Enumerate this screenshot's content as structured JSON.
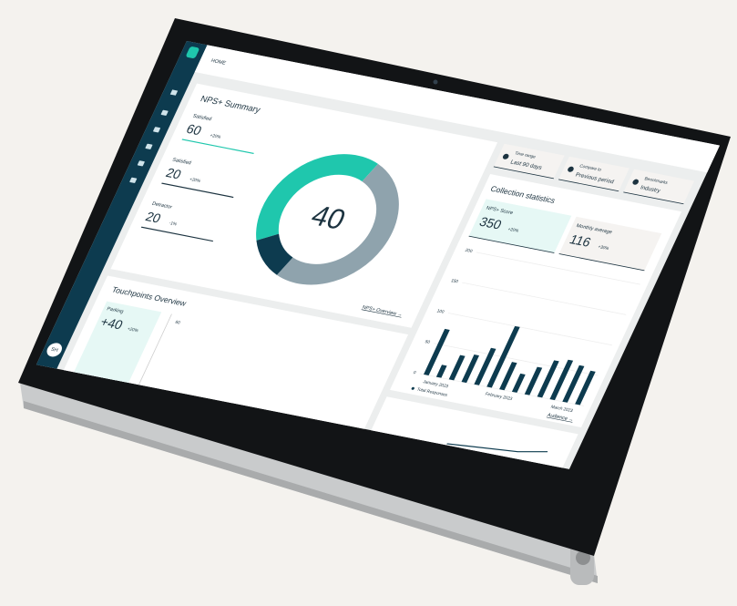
{
  "header": {
    "title": "HOME",
    "avatar": "SH"
  },
  "filters": [
    {
      "label": "Time range",
      "value": "Last 90 days"
    },
    {
      "label": "Compare to",
      "value": "Previous period"
    },
    {
      "label": "Benchmarks",
      "value": "Industry"
    }
  ],
  "nps": {
    "title": "NPS+ Summary",
    "score": "40",
    "stats": [
      {
        "label": "Satisfied",
        "value": "60",
        "change": "+20%"
      },
      {
        "label": "Satisfied",
        "value": "20",
        "change": "+20%"
      },
      {
        "label": "Detractor",
        "value": "20",
        "change": "-1%"
      }
    ],
    "link": "NPS+ Overview →"
  },
  "collection": {
    "title": "Collection statistics",
    "stats": [
      {
        "label": "NPS+ Score",
        "value": "350",
        "change": "+20%"
      },
      {
        "label": "Monthly average",
        "value": "116",
        "change": "+30%"
      }
    ],
    "link": "Audience →"
  },
  "touchpoints": {
    "title": "Touchpoints Overview",
    "stats": [
      {
        "label": "Parking",
        "value": "+40",
        "change": "+20%"
      }
    ],
    "axis_label": "60"
  },
  "chart_data": [
    {
      "type": "donut",
      "values": [
        39,
        50,
        11
      ],
      "colors": [
        "#1fc7ad",
        "#8fa3ad",
        "#0d3b4f"
      ]
    },
    {
      "type": "bar",
      "categories": [
        null,
        "January 2023",
        null,
        null,
        null,
        null,
        "February 2023",
        null,
        null,
        null,
        null,
        "March 2023",
        null
      ],
      "series": [
        {
          "name": "Total Responses",
          "color": "#0d3b4f",
          "values": [
            75,
            20,
            40,
            45,
            60,
            100,
            45,
            30,
            45,
            60,
            65,
            60,
            55
          ]
        }
      ],
      "ylim": [
        0,
        200
      ],
      "yticks": [
        0,
        50,
        100,
        150,
        200
      ]
    }
  ]
}
